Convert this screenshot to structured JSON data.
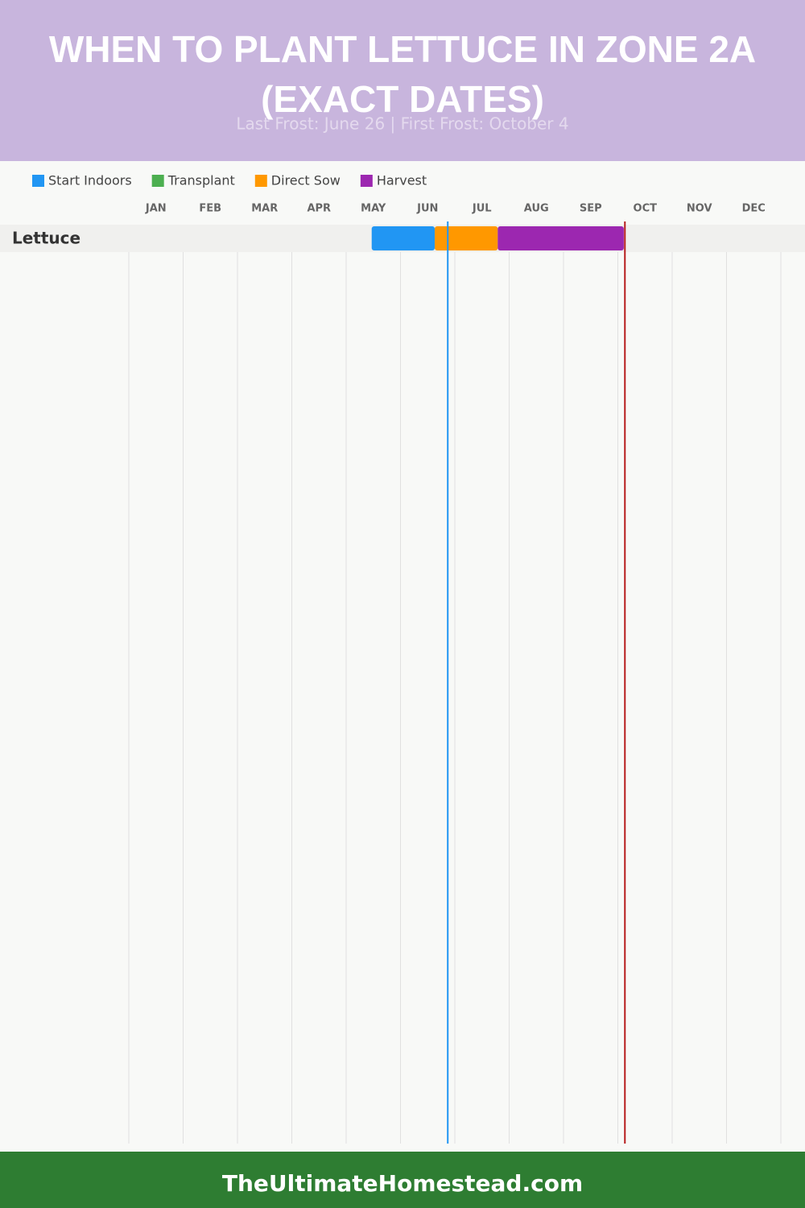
{
  "chart_data": {
    "type": "gantt",
    "title": "WHEN TO PLANT LETTUCE IN ZONE 2A (EXACT DATES)",
    "subtitle": "Last Frost: June 26 | First Frost: October 4",
    "months": [
      "JAN",
      "FEB",
      "MAR",
      "APR",
      "MAY",
      "JUN",
      "JUL",
      "AUG",
      "SEP",
      "OCT",
      "NOV",
      "DEC"
    ],
    "xlim": [
      0,
      12
    ],
    "categories": [
      "Lettuce"
    ],
    "series": [
      {
        "name": "Start Indoors",
        "color": "#2196f3",
        "values": [
          [
            4.47,
            5.63
          ]
        ]
      },
      {
        "name": "Transplant",
        "color": "#4caf50",
        "values": [
          null
        ]
      },
      {
        "name": "Direct Sow",
        "color": "#ff9800",
        "values": [
          [
            5.63,
            6.79
          ]
        ]
      },
      {
        "name": "Harvest",
        "color": "#9c27b0",
        "values": [
          [
            6.79,
            9.11
          ]
        ]
      }
    ],
    "frost_lines": [
      {
        "value": 5.87,
        "color": "#2196f3"
      },
      {
        "value": 9.13,
        "color": "#b71c1c"
      }
    ],
    "footer": "TheUltimateHomestead.com"
  }
}
